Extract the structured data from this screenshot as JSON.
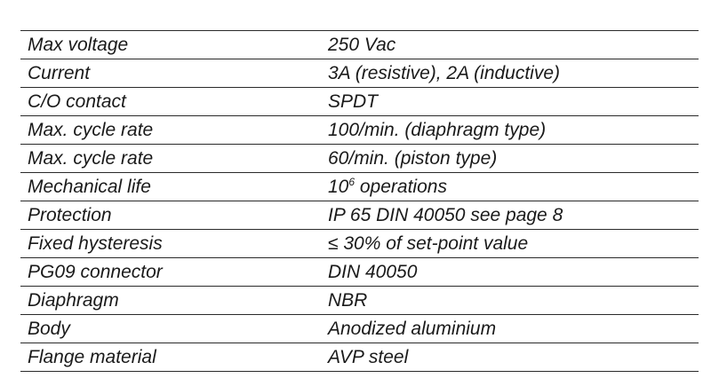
{
  "rows": [
    {
      "label": "Max voltage",
      "value": "250 Vac"
    },
    {
      "label": "Current",
      "value": "3A (resistive), 2A (inductive)"
    },
    {
      "label": "C/O contact",
      "value": "SPDT"
    },
    {
      "label": "Max. cycle rate",
      "value": "100/min. (diaphragm type)"
    },
    {
      "label": "Max. cycle rate",
      "value": "60/min. (piston type)"
    },
    {
      "label": "Mechanical life",
      "value_base": "10",
      "value_exp": "6",
      "value_rest": " operations"
    },
    {
      "label": "Protection",
      "value": "IP 65 DIN 40050 see page 8"
    },
    {
      "label": "Fixed hysteresis",
      "value": "≤ 30% of set-point value"
    },
    {
      "label": "PG09 connector",
      "value": "DIN 40050"
    },
    {
      "label": "Diaphragm",
      "value": "NBR"
    },
    {
      "label": "Body",
      "value": "Anodized aluminium"
    },
    {
      "label": "Flange material",
      "value": "AVP steel"
    }
  ]
}
